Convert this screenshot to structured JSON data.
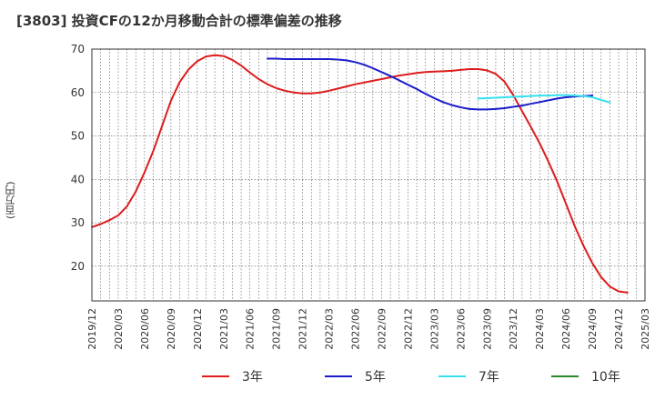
{
  "chart_data": {
    "type": "line",
    "title": "[3803]  投資CFの12か月移動合計の標準偏差の推移",
    "ylabel": "(百万円)",
    "xlabel": "",
    "ylim": [
      12,
      70
    ],
    "yticks": [
      20,
      30,
      40,
      50,
      60,
      70
    ],
    "x_tick_labels": [
      "2019/12",
      "2020/03",
      "2020/06",
      "2020/09",
      "2020/12",
      "2021/03",
      "2021/06",
      "2021/09",
      "2021/12",
      "2022/03",
      "2022/06",
      "2022/09",
      "2022/12",
      "2023/03",
      "2023/06",
      "2023/09",
      "2023/12",
      "2024/03",
      "2024/06",
      "2024/09",
      "2024/12",
      "2025/03"
    ],
    "grid": true,
    "legend_position": "bottom",
    "series": [
      {
        "name": "3年",
        "color": "#dd1c1c",
        "start": "2019/12",
        "values": [
          29.0,
          29.7,
          30.6,
          31.7,
          33.8,
          37.2,
          41.6,
          46.6,
          52.3,
          58.1,
          62.4,
          65.3,
          67.2,
          68.3,
          68.6,
          68.4,
          67.5,
          66.2,
          64.6,
          63.1,
          61.9,
          61.0,
          60.4,
          60.0,
          59.8,
          59.8,
          60.0,
          60.4,
          60.9,
          61.4,
          61.9,
          62.3,
          62.7,
          63.1,
          63.5,
          63.9,
          64.2,
          64.5,
          64.7,
          64.8,
          64.9,
          65.0,
          65.2,
          65.4,
          65.4,
          65.1,
          64.3,
          62.5,
          59.4,
          55.7,
          52.1,
          48.3,
          44.1,
          39.5,
          34.4,
          29.2,
          24.7,
          20.7,
          17.5,
          15.3,
          14.2,
          13.9
        ]
      },
      {
        "name": "5年",
        "color": "#1c1ccc",
        "start": "2021/08",
        "values": [
          67.8,
          67.8,
          67.7,
          67.7,
          67.7,
          67.7,
          67.7,
          67.7,
          67.6,
          67.4,
          67.0,
          66.4,
          65.6,
          64.7,
          63.8,
          62.8,
          61.8,
          60.8,
          59.7,
          58.7,
          57.8,
          57.1,
          56.6,
          56.2,
          56.1,
          56.1,
          56.2,
          56.4,
          56.7,
          57.0,
          57.4,
          57.8,
          58.2,
          58.6,
          58.9,
          59.1,
          59.2,
          59.3
        ]
      },
      {
        "name": "7年",
        "color": "#33e0f0",
        "start": "2023/08",
        "values": [
          58.6,
          58.7,
          58.8,
          58.9,
          59.0,
          59.1,
          59.2,
          59.3,
          59.3,
          59.4,
          59.4,
          59.3,
          59.2,
          58.9,
          58.3,
          57.7
        ]
      },
      {
        "name": "10年",
        "color": "#2a8a2a",
        "start": "",
        "values": []
      }
    ]
  }
}
